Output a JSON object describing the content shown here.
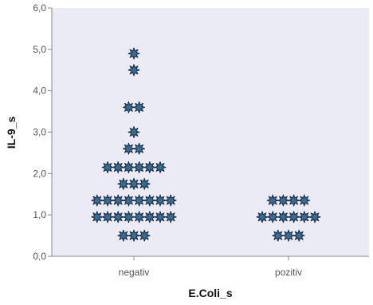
{
  "chart_data": {
    "type": "scatter",
    "subtype": "dot-plot",
    "xlabel": "E.Coli_s",
    "ylabel": "IL-9_s",
    "categories": [
      "negativ",
      "pozitiv"
    ],
    "ylim": [
      0,
      6
    ],
    "yticks": [
      "0,0",
      "1,0",
      "2,0",
      "3,0",
      "4,0",
      "5,0",
      "6,0"
    ],
    "grid": false,
    "marker": "star",
    "colors": {
      "plot_background": "#ebebf5",
      "marker_fill": "#2f6f9f",
      "marker_edge": "#1d2a36",
      "axis": "#888888"
    },
    "series": [
      {
        "category": "negativ",
        "points": [
          {
            "y": 4.9,
            "count": 1
          },
          {
            "y": 4.5,
            "count": 1
          },
          {
            "y": 3.6,
            "count": 2
          },
          {
            "y": 3.0,
            "count": 1
          },
          {
            "y": 2.6,
            "count": 2
          },
          {
            "y": 2.15,
            "count": 6
          },
          {
            "y": 1.75,
            "count": 3
          },
          {
            "y": 1.35,
            "count": 8
          },
          {
            "y": 0.95,
            "count": 8
          },
          {
            "y": 0.5,
            "count": 3
          }
        ]
      },
      {
        "category": "pozitiv",
        "points": [
          {
            "y": 1.35,
            "count": 4
          },
          {
            "y": 0.95,
            "count": 6
          },
          {
            "y": 0.5,
            "count": 3
          }
        ]
      }
    ]
  }
}
